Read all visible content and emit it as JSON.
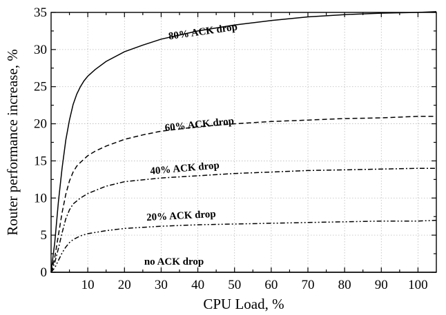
{
  "chart_data": {
    "type": "line",
    "title": "",
    "xlabel": "CPU Load, %",
    "ylabel": "Router performance increase, %",
    "xlim": [
      0,
      105
    ],
    "ylim": [
      0,
      35
    ],
    "xticks": [
      10,
      20,
      30,
      40,
      50,
      60,
      70,
      80,
      90,
      100
    ],
    "yticks": [
      0,
      5,
      10,
      15,
      20,
      25,
      30,
      35
    ],
    "grid": true,
    "series": [
      {
        "name": "80% ACK drop",
        "dash": "solid",
        "x": [
          0,
          1,
          2,
          3,
          4,
          5,
          6,
          7,
          8,
          9,
          10,
          12,
          15,
          20,
          25,
          30,
          40,
          50,
          60,
          70,
          80,
          90,
          100,
          105
        ],
        "y": [
          0,
          4.0,
          9.5,
          14.0,
          17.8,
          20.5,
          22.6,
          24.0,
          25.0,
          25.8,
          26.4,
          27.3,
          28.4,
          29.7,
          30.6,
          31.4,
          32.5,
          33.3,
          33.9,
          34.4,
          34.7,
          34.9,
          35.0,
          35.1
        ]
      },
      {
        "name": "60% ACK drop",
        "dash": "dashed",
        "x": [
          0,
          1,
          2,
          3,
          4,
          5,
          6,
          7,
          8,
          10,
          12,
          15,
          20,
          25,
          30,
          40,
          50,
          60,
          70,
          80,
          90,
          100,
          105
        ],
        "y": [
          0,
          2.0,
          5.0,
          8.0,
          10.5,
          12.3,
          13.5,
          14.3,
          14.8,
          15.7,
          16.3,
          17.0,
          17.9,
          18.5,
          19.0,
          19.6,
          20.0,
          20.3,
          20.5,
          20.7,
          20.8,
          21.0,
          21.0
        ]
      },
      {
        "name": "40% ACK drop",
        "dash": "dashdot",
        "x": [
          0,
          1,
          2,
          3,
          4,
          5,
          6,
          8,
          10,
          15,
          20,
          30,
          40,
          50,
          60,
          70,
          80,
          90,
          100,
          105
        ],
        "y": [
          0,
          1.3,
          3.2,
          5.3,
          7.2,
          8.4,
          9.2,
          10.0,
          10.6,
          11.6,
          12.2,
          12.7,
          13.0,
          13.3,
          13.5,
          13.7,
          13.8,
          13.9,
          14.0,
          14.0
        ]
      },
      {
        "name": "20% ACK drop",
        "dash": "dashdotdot",
        "x": [
          0,
          1,
          2,
          3,
          4,
          5,
          6,
          8,
          10,
          15,
          20,
          30,
          40,
          50,
          60,
          70,
          80,
          90,
          100,
          105
        ],
        "y": [
          0,
          0.6,
          1.6,
          2.6,
          3.4,
          4.0,
          4.4,
          4.9,
          5.2,
          5.6,
          5.9,
          6.2,
          6.4,
          6.5,
          6.6,
          6.7,
          6.8,
          6.9,
          6.9,
          7.0
        ]
      },
      {
        "name": "no ACK drop",
        "dash": "solid",
        "x": [
          0,
          105
        ],
        "y": [
          0,
          0
        ]
      }
    ]
  }
}
